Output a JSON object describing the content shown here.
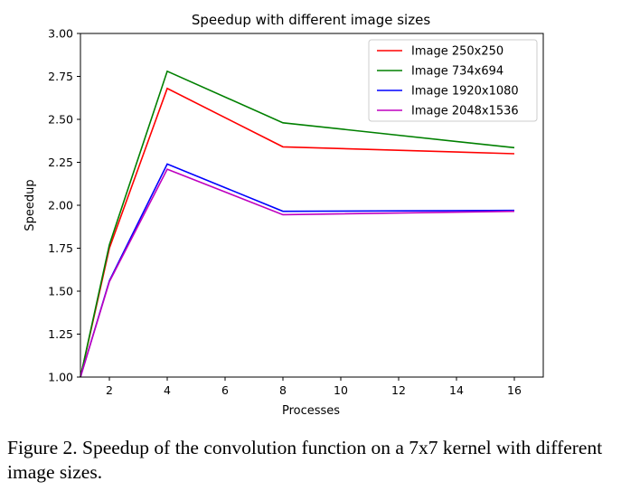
{
  "chart_data": {
    "type": "line",
    "title": "Speedup with different image sizes",
    "xlabel": "Processes",
    "ylabel": "Speedup",
    "x": [
      1,
      2,
      4,
      8,
      16
    ],
    "xlim": [
      1,
      17
    ],
    "ylim": [
      1.0,
      3.0
    ],
    "xticks": [
      2,
      4,
      6,
      8,
      10,
      12,
      14,
      16
    ],
    "yticks": [
      1.0,
      1.25,
      1.5,
      1.75,
      2.0,
      2.25,
      2.5,
      2.75,
      3.0
    ],
    "grid": false,
    "legend_position": "top-right",
    "series": [
      {
        "name": "Image 250x250",
        "color": "#ff0000",
        "values": [
          1.0,
          1.75,
          2.68,
          2.34,
          2.3
        ]
      },
      {
        "name": "Image 734x694",
        "color": "#008000",
        "values": [
          1.0,
          1.77,
          2.78,
          2.48,
          2.335
        ]
      },
      {
        "name": "Image 1920x1080",
        "color": "#0000ff",
        "values": [
          1.0,
          1.56,
          2.24,
          1.965,
          1.97
        ]
      },
      {
        "name": "Image 2048x1536",
        "color": "#bf00bf",
        "values": [
          1.0,
          1.555,
          2.21,
          1.945,
          1.965
        ]
      }
    ]
  },
  "caption": "Figure 2. Speedup of the convolution function on a 7x7 kernel with different image sizes."
}
